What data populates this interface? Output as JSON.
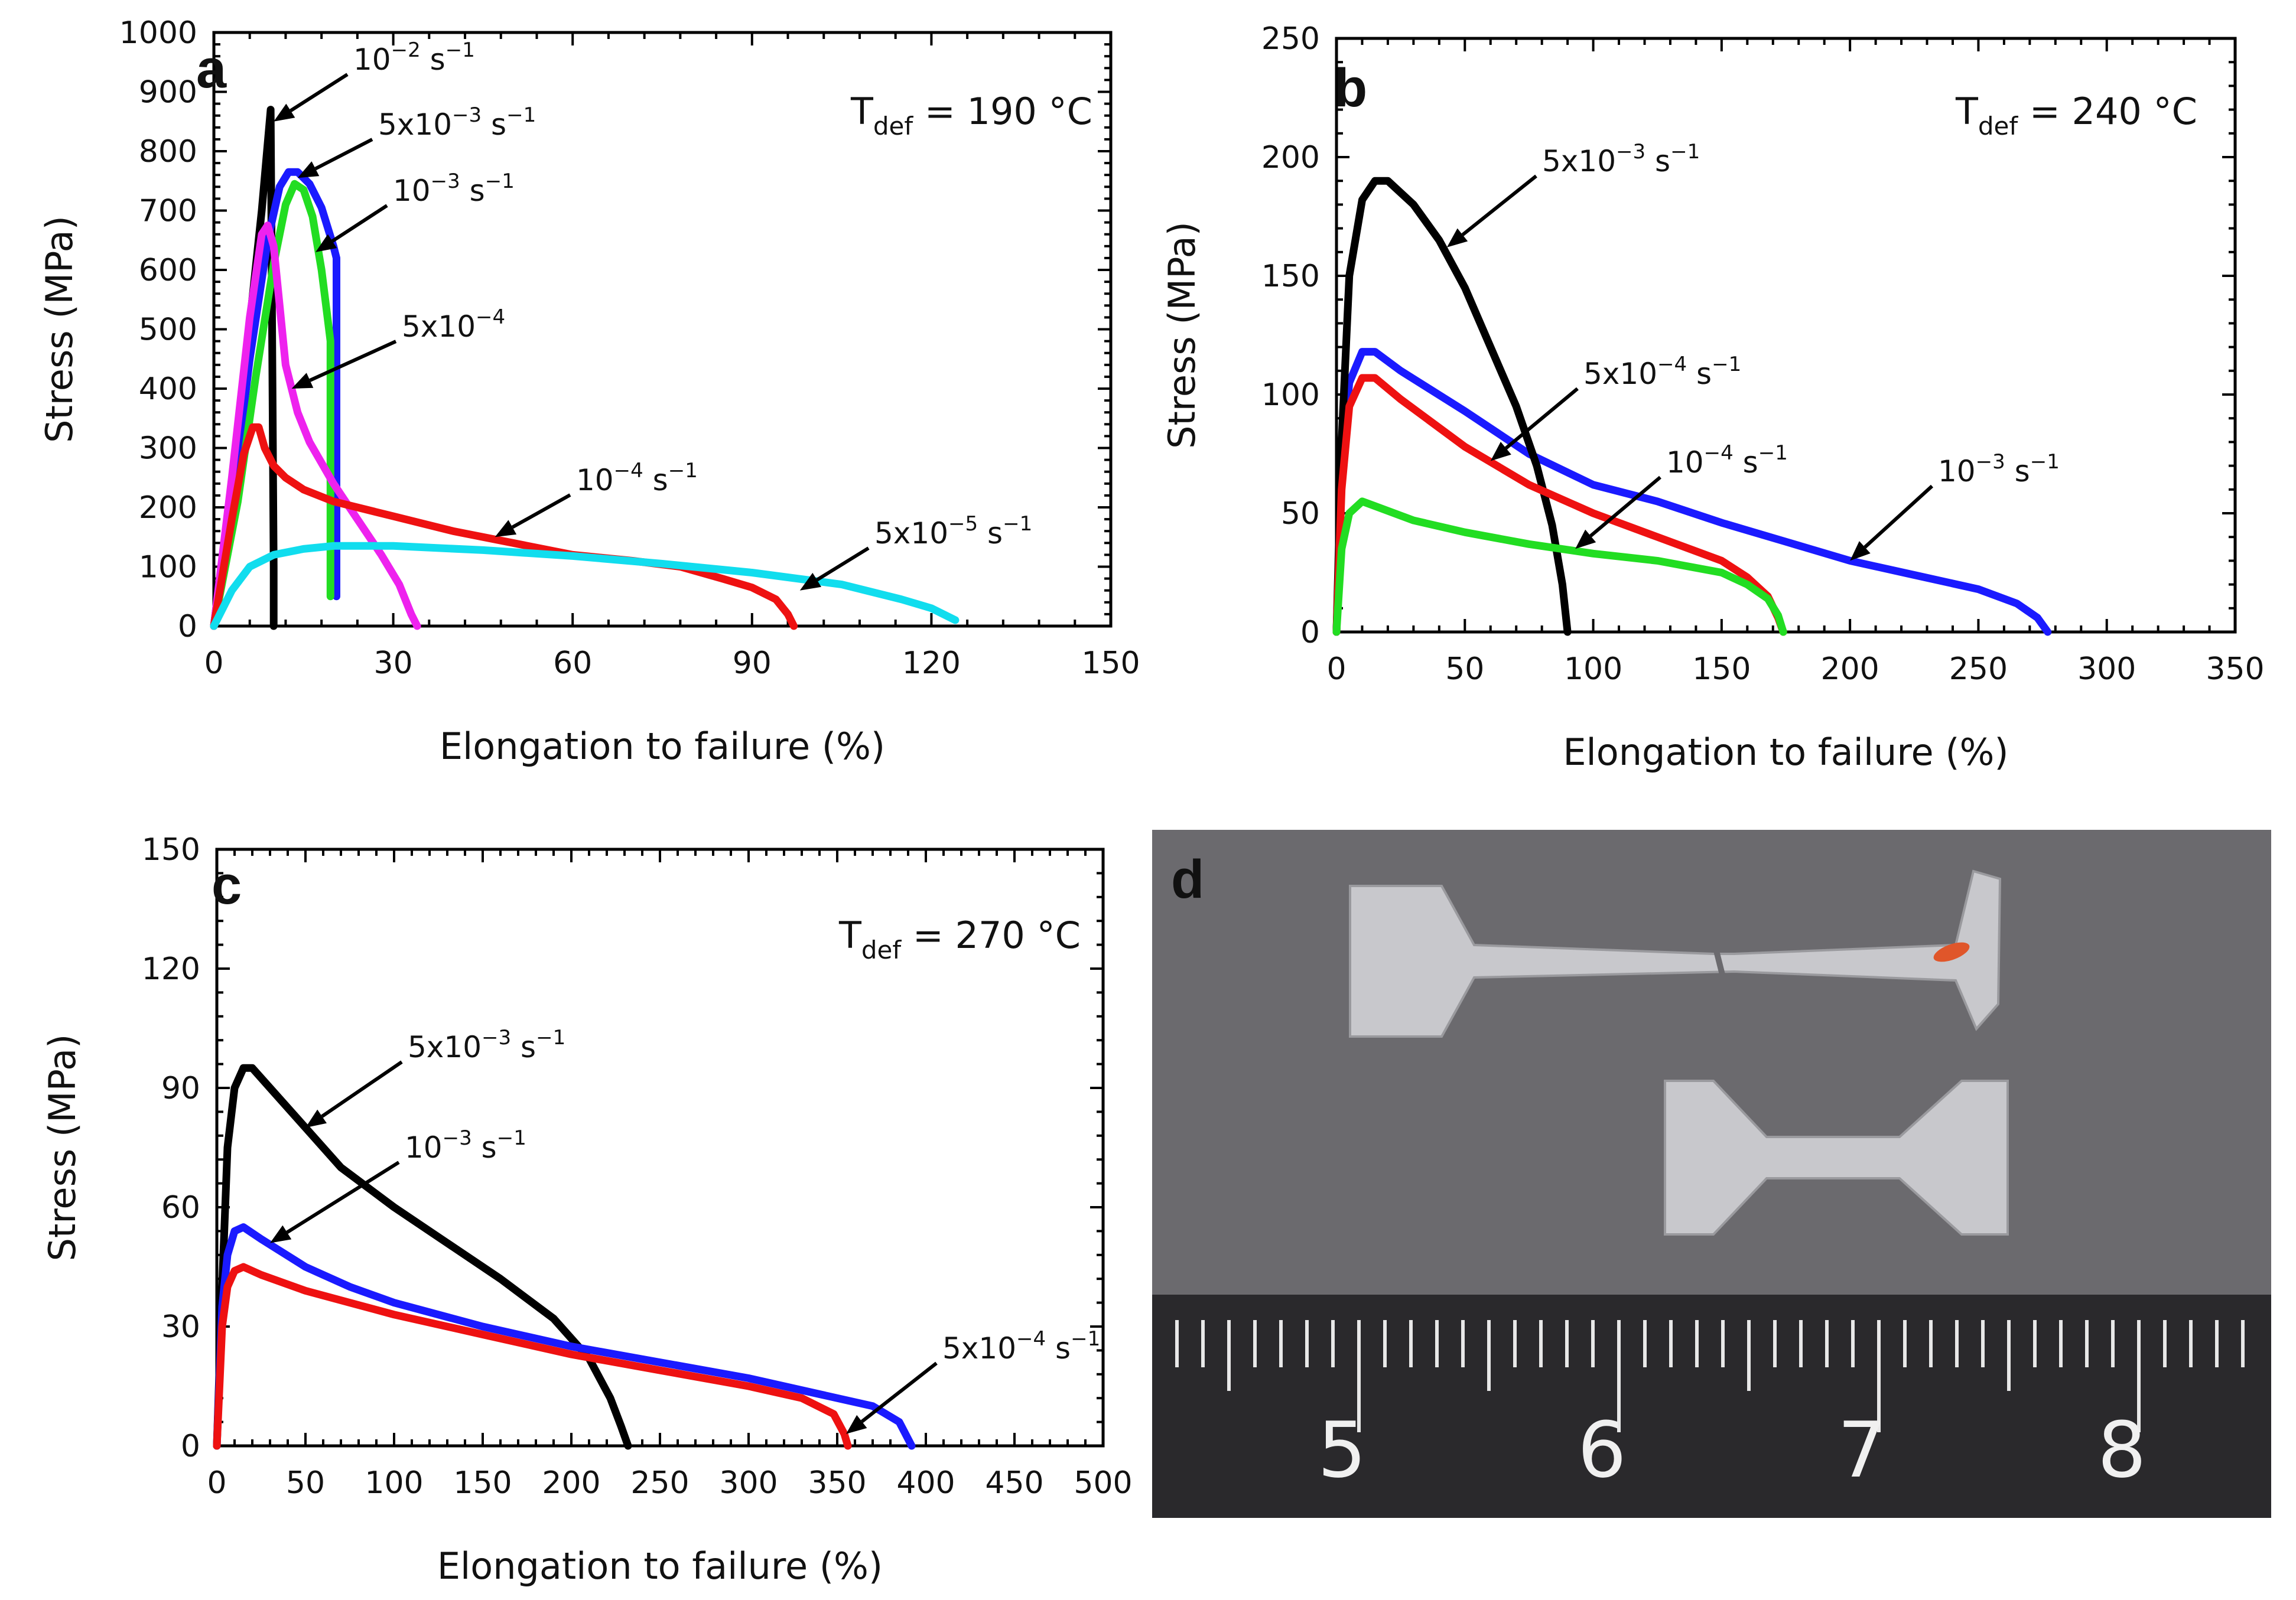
{
  "chart_data": [
    {
      "panel": "a",
      "type": "line",
      "condition": {
        "prefix": "T",
        "sub": "def",
        "text": " = 190 °C"
      },
      "xlabel": "Elongation to failure (%)",
      "ylabel": "Stress (MPa)",
      "xlim": [
        0,
        150
      ],
      "ylim": [
        0,
        1000
      ],
      "xticks": [
        "0",
        "30",
        "60",
        "90",
        "120",
        "150"
      ],
      "yticks": [
        "0",
        "100",
        "200",
        "300",
        "400",
        "500",
        "600",
        "700",
        "800",
        "900",
        "1000"
      ],
      "series": [
        {
          "name": "10^-2 s^-1",
          "color": "#000000",
          "points": [
            [
              0,
              0
            ],
            [
              2,
              160
            ],
            [
              4,
              330
            ],
            [
              6,
              510
            ],
            [
              8,
              700
            ],
            [
              9.5,
              870
            ],
            [
              10,
              100
            ],
            [
              10,
              0
            ]
          ]
        },
        {
          "name": "5x10^-3 s^-1",
          "color": "#1a1aff",
          "points": [
            [
              0,
              0
            ],
            [
              3,
              200
            ],
            [
              6,
              450
            ],
            [
              9,
              650
            ],
            [
              11,
              740
            ],
            [
              12.5,
              765
            ],
            [
              14,
              765
            ],
            [
              16,
              745
            ],
            [
              18,
              705
            ],
            [
              20,
              640
            ],
            [
              20.5,
              620
            ],
            [
              20.5,
              50
            ]
          ]
        },
        {
          "name": "10^-3 s^-1",
          "color": "#22dd22",
          "points": [
            [
              0,
              0
            ],
            [
              4,
              210
            ],
            [
              7,
              420
            ],
            [
              10,
              610
            ],
            [
              12,
              710
            ],
            [
              13.5,
              745
            ],
            [
              15,
              735
            ],
            [
              16.5,
              690
            ],
            [
              18,
              600
            ],
            [
              19,
              520
            ],
            [
              19.5,
              480
            ],
            [
              19.5,
              50
            ]
          ]
        },
        {
          "name": "5x10^-4",
          "color": "#ee22ee",
          "points": [
            [
              0,
              0
            ],
            [
              3,
              250
            ],
            [
              6,
              520
            ],
            [
              8,
              660
            ],
            [
              9,
              675
            ],
            [
              10,
              640
            ],
            [
              11,
              540
            ],
            [
              12,
              440
            ],
            [
              14,
              360
            ],
            [
              16,
              310
            ],
            [
              20,
              240
            ],
            [
              24,
              180
            ],
            [
              28,
              120
            ],
            [
              31,
              70
            ],
            [
              33,
              20
            ],
            [
              34,
              0
            ]
          ]
        },
        {
          "name": "10^-4 s^-1",
          "color": "#ee1111",
          "points": [
            [
              0,
              0
            ],
            [
              3,
              180
            ],
            [
              5,
              290
            ],
            [
              6.5,
              335
            ],
            [
              7.5,
              335
            ],
            [
              8.5,
              300
            ],
            [
              10,
              270
            ],
            [
              12,
              250
            ],
            [
              15,
              230
            ],
            [
              20,
              210
            ],
            [
              30,
              185
            ],
            [
              40,
              160
            ],
            [
              50,
              140
            ],
            [
              60,
              120
            ],
            [
              70,
              110
            ],
            [
              78,
              100
            ],
            [
              85,
              80
            ],
            [
              90,
              65
            ],
            [
              94,
              45
            ],
            [
              96,
              20
            ],
            [
              97,
              0
            ]
          ]
        },
        {
          "name": "5x10^-5 s^-1",
          "color": "#11ddee",
          "points": [
            [
              0,
              0
            ],
            [
              3,
              60
            ],
            [
              6,
              100
            ],
            [
              10,
              120
            ],
            [
              15,
              130
            ],
            [
              20,
              135
            ],
            [
              30,
              135
            ],
            [
              45,
              128
            ],
            [
              60,
              118
            ],
            [
              75,
              105
            ],
            [
              90,
              90
            ],
            [
              105,
              70
            ],
            [
              115,
              45
            ],
            [
              120,
              30
            ],
            [
              124,
              10
            ]
          ]
        }
      ],
      "annotations": [
        {
          "text": "10^-2 s^-1",
          "label": {
            "base": "10",
            "exp": "−2",
            "unit": " s",
            "uexp": "−1"
          },
          "target": [
            10,
            850
          ]
        },
        {
          "text": "5x10^-3 s^-1",
          "label": {
            "base": "5x10",
            "exp": "−3",
            "unit": " s",
            "uexp": "−1"
          },
          "target": [
            14,
            755
          ]
        },
        {
          "text": "10^-3 s^-1",
          "label": {
            "base": "10",
            "exp": "−3",
            "unit": " s",
            "uexp": "−1"
          },
          "target": [
            17,
            630
          ]
        },
        {
          "text": "5x10^-4",
          "label": {
            "base": "5x10",
            "exp": "−4",
            "unit": "",
            "uexp": ""
          },
          "target": [
            13,
            400
          ]
        },
        {
          "text": "10^-4 s^-1",
          "label": {
            "base": "10",
            "exp": "−4",
            "unit": " s",
            "uexp": "−1"
          },
          "target": [
            47,
            150
          ]
        },
        {
          "text": "5x10^-5 s^-1",
          "label": {
            "base": "5x10",
            "exp": "−5",
            "unit": " s",
            "uexp": "−1"
          },
          "target": [
            98,
            60
          ]
        }
      ]
    },
    {
      "panel": "b",
      "type": "line",
      "condition": {
        "prefix": "T",
        "sub": "def",
        "text": " = 240 °C"
      },
      "xlabel": "Elongation to failure (%)",
      "ylabel": "Stress (MPa)",
      "xlim": [
        0,
        350
      ],
      "ylim": [
        0,
        250
      ],
      "xticks": [
        "0",
        "50",
        "100",
        "150",
        "200",
        "250",
        "300",
        "350"
      ],
      "yticks": [
        "0",
        "50",
        "100",
        "150",
        "200",
        "250"
      ],
      "series": [
        {
          "name": "10^-3 s^-1",
          "color": "#1a1aff",
          "points": [
            [
              0,
              0
            ],
            [
              2,
              70
            ],
            [
              5,
              105
            ],
            [
              10,
              118
            ],
            [
              15,
              118
            ],
            [
              25,
              110
            ],
            [
              50,
              93
            ],
            [
              75,
              75
            ],
            [
              100,
              62
            ],
            [
              125,
              55
            ],
            [
              150,
              46
            ],
            [
              175,
              38
            ],
            [
              200,
              30
            ],
            [
              225,
              24
            ],
            [
              250,
              18
            ],
            [
              265,
              12
            ],
            [
              273,
              6
            ],
            [
              277,
              0
            ]
          ]
        },
        {
          "name": "5x10^-3 s^-1",
          "color": "#000000",
          "points": [
            [
              0,
              0
            ],
            [
              2,
              80
            ],
            [
              5,
              150
            ],
            [
              10,
              182
            ],
            [
              15,
              190
            ],
            [
              20,
              190
            ],
            [
              30,
              180
            ],
            [
              40,
              165
            ],
            [
              50,
              145
            ],
            [
              60,
              120
            ],
            [
              70,
              95
            ],
            [
              78,
              70
            ],
            [
              84,
              45
            ],
            [
              88,
              20
            ],
            [
              90,
              0
            ]
          ]
        },
        {
          "name": "5x10^-4 s^-1",
          "color": "#ee1111",
          "points": [
            [
              0,
              0
            ],
            [
              2,
              60
            ],
            [
              5,
              95
            ],
            [
              10,
              107
            ],
            [
              15,
              107
            ],
            [
              25,
              98
            ],
            [
              50,
              78
            ],
            [
              75,
              62
            ],
            [
              100,
              50
            ],
            [
              125,
              40
            ],
            [
              150,
              30
            ],
            [
              160,
              23
            ],
            [
              168,
              15
            ],
            [
              172,
              6
            ],
            [
              174,
              0
            ]
          ]
        },
        {
          "name": "10^-4 s^-1",
          "color": "#22dd22",
          "points": [
            [
              0,
              0
            ],
            [
              2,
              35
            ],
            [
              5,
              50
            ],
            [
              10,
              55
            ],
            [
              15,
              53
            ],
            [
              30,
              47
            ],
            [
              50,
              42
            ],
            [
              75,
              37
            ],
            [
              100,
              33
            ],
            [
              125,
              30
            ],
            [
              150,
              25
            ],
            [
              160,
              20
            ],
            [
              168,
              14
            ],
            [
              172,
              7
            ],
            [
              174,
              0
            ]
          ]
        }
      ],
      "annotations": [
        {
          "text": "5x10^-3 s^-1",
          "label": {
            "base": "5x10",
            "exp": "−3",
            "unit": " s",
            "uexp": "−1"
          },
          "target": [
            43,
            162
          ]
        },
        {
          "text": "5x10^-4 s^-1",
          "label": {
            "base": "5x10",
            "exp": "−4",
            "unit": " s",
            "uexp": "−1"
          },
          "target": [
            60,
            72
          ]
        },
        {
          "text": "10^-4 s^-1",
          "label": {
            "base": "10",
            "exp": "−4",
            "unit": " s",
            "uexp": "−1"
          },
          "target": [
            93,
            35
          ]
        },
        {
          "text": "10^-3 s^-1",
          "label": {
            "base": "10",
            "exp": "−3",
            "unit": " s",
            "uexp": "−1"
          },
          "target": [
            200,
            30
          ]
        }
      ]
    },
    {
      "panel": "c",
      "type": "line",
      "condition": {
        "prefix": "T",
        "sub": "def",
        "text": " = 270 °C"
      },
      "xlabel": "Elongation to failure (%)",
      "ylabel": "Stress (MPa)",
      "xlim": [
        0,
        500
      ],
      "ylim": [
        0,
        150
      ],
      "xticks": [
        "0",
        "50",
        "100",
        "150",
        "200",
        "250",
        "300",
        "350",
        "400",
        "450",
        "500"
      ],
      "yticks": [
        "0",
        "30",
        "60",
        "90",
        "120",
        "150"
      ],
      "series": [
        {
          "name": "5x10^-3 s^-1",
          "color": "#000000",
          "points": [
            [
              0,
              0
            ],
            [
              3,
              40
            ],
            [
              6,
              75
            ],
            [
              10,
              90
            ],
            [
              15,
              95
            ],
            [
              20,
              95
            ],
            [
              30,
              90
            ],
            [
              50,
              80
            ],
            [
              70,
              70
            ],
            [
              100,
              60
            ],
            [
              130,
              51
            ],
            [
              160,
              42
            ],
            [
              190,
              32
            ],
            [
              210,
              22
            ],
            [
              222,
              12
            ],
            [
              228,
              5
            ],
            [
              232,
              0
            ]
          ]
        },
        {
          "name": "10^-3 s^-1",
          "color": "#1a1aff",
          "points": [
            [
              0,
              0
            ],
            [
              3,
              35
            ],
            [
              6,
              48
            ],
            [
              10,
              54
            ],
            [
              15,
              55
            ],
            [
              25,
              52
            ],
            [
              50,
              45
            ],
            [
              75,
              40
            ],
            [
              100,
              36
            ],
            [
              150,
              30
            ],
            [
              200,
              25
            ],
            [
              250,
              21
            ],
            [
              300,
              17
            ],
            [
              340,
              13
            ],
            [
              370,
              10
            ],
            [
              385,
              6
            ],
            [
              392,
              0
            ]
          ]
        },
        {
          "name": "5x10^-4 s^-1",
          "color": "#ee1111",
          "points": [
            [
              0,
              0
            ],
            [
              3,
              30
            ],
            [
              6,
              40
            ],
            [
              10,
              44
            ],
            [
              15,
              45
            ],
            [
              25,
              43
            ],
            [
              50,
              39
            ],
            [
              75,
              36
            ],
            [
              100,
              33
            ],
            [
              150,
              28
            ],
            [
              200,
              23
            ],
            [
              250,
              19
            ],
            [
              300,
              15
            ],
            [
              330,
              12
            ],
            [
              348,
              8
            ],
            [
              354,
              3
            ],
            [
              356,
              0
            ]
          ]
        }
      ],
      "annotations": [
        {
          "text": "5x10^-3 s^-1",
          "label": {
            "base": "5x10",
            "exp": "−3",
            "unit": " s",
            "uexp": "−1"
          },
          "target": [
            50,
            80
          ]
        },
        {
          "text": "10^-3 s^-1",
          "label": {
            "base": "10",
            "exp": "−3",
            "unit": " s",
            "uexp": "−1"
          },
          "target": [
            30,
            51
          ]
        },
        {
          "text": "5x10^-4 s^-1",
          "label": {
            "base": "5x10",
            "exp": "−4",
            "unit": " s",
            "uexp": "−1"
          },
          "target": [
            355,
            3
          ]
        }
      ]
    }
  ],
  "photo": {
    "panel": "d",
    "ruler_labels": [
      "5",
      "6",
      "7",
      "8"
    ],
    "colors": {
      "background": "#6b6a6e",
      "ruler": "#2a292c",
      "specimen": "#c8c8cc",
      "mark": "#e0562a"
    }
  }
}
